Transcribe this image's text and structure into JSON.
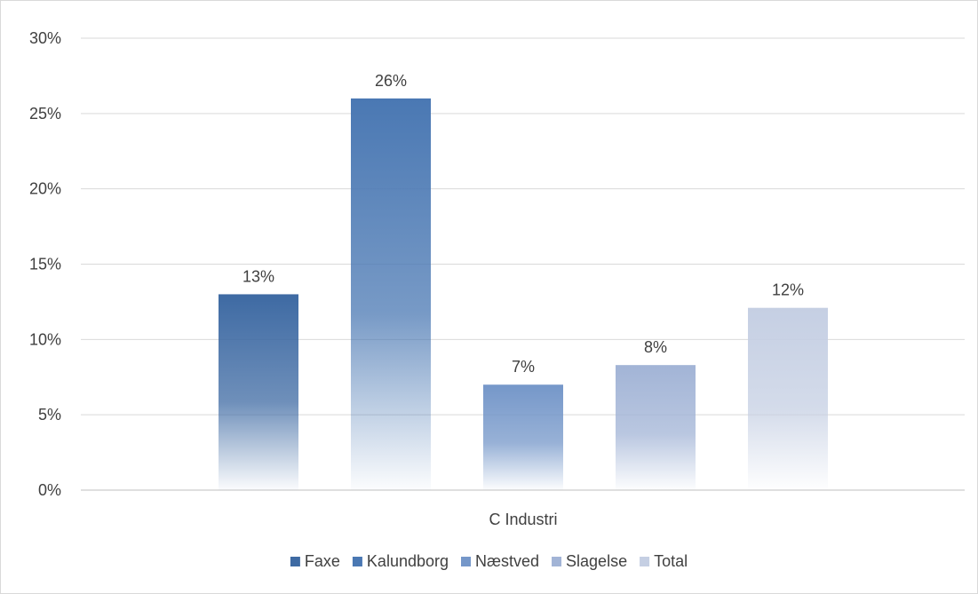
{
  "chart_data": {
    "type": "bar",
    "categories": [
      "C Industri"
    ],
    "series": [
      {
        "name": "Faxe",
        "values": [
          0.13
        ],
        "label": "13%",
        "color": "#3e6aa3"
      },
      {
        "name": "Kalundborg",
        "values": [
          0.26
        ],
        "label": "26%",
        "color": "#4a78b3"
      },
      {
        "name": "Næstved",
        "values": [
          0.07
        ],
        "label": "7%",
        "color": "#7597c9"
      },
      {
        "name": "Slagelse",
        "values": [
          0.083
        ],
        "label": "8%",
        "color": "#a2b4d6"
      },
      {
        "name": "Total",
        "values": [
          0.121
        ],
        "label": "12%",
        "color": "#c5cfe3"
      }
    ],
    "ylim": [
      0,
      0.3
    ],
    "yticks": [
      0,
      0.05,
      0.1,
      0.15,
      0.2,
      0.25,
      0.3
    ],
    "ytick_labels": [
      "0%",
      "5%",
      "10%",
      "15%",
      "20%",
      "25%",
      "30%"
    ],
    "title": "",
    "xlabel": "",
    "ylabel": "",
    "grid": true,
    "legend_position": "bottom",
    "fill_style": "gradient fading to white at bottom"
  }
}
